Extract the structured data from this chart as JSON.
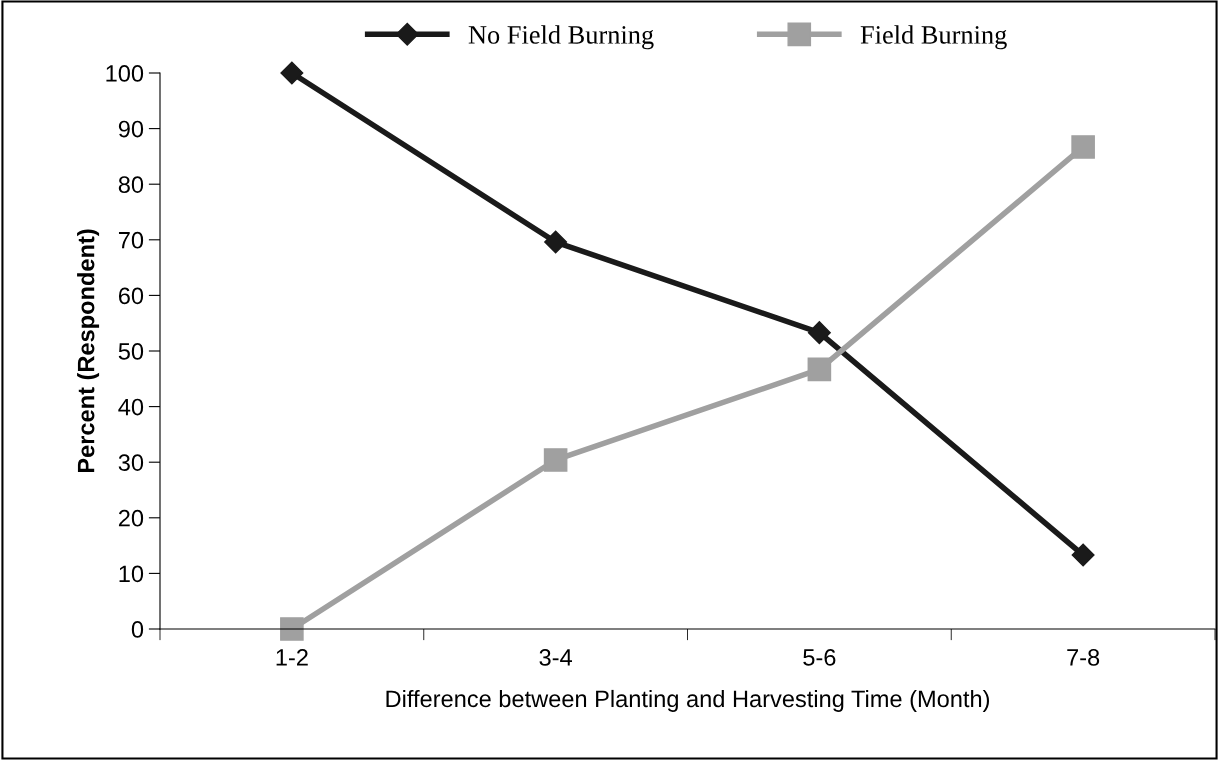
{
  "chart_data": {
    "type": "line",
    "xlabel": "Difference between Planting and Harvesting Time (Month)",
    "ylabel": "Percent (Respondent)",
    "categories": [
      "1-2",
      "3-4",
      "5-6",
      "7-8"
    ],
    "series": [
      {
        "name": "No Field Burning",
        "color": "#1a1a1a",
        "marker": "diamond",
        "values": [
          100,
          69.6,
          53.3,
          13.3
        ]
      },
      {
        "name": "Field Burning",
        "color": "#a0a0a0",
        "marker": "square",
        "values": [
          0,
          30.4,
          46.7,
          86.7
        ]
      }
    ],
    "ylim": [
      0,
      100
    ],
    "yticks": [
      0,
      10,
      20,
      30,
      40,
      50,
      60,
      70,
      80,
      90,
      100
    ],
    "grid": false,
    "legend": "top"
  }
}
